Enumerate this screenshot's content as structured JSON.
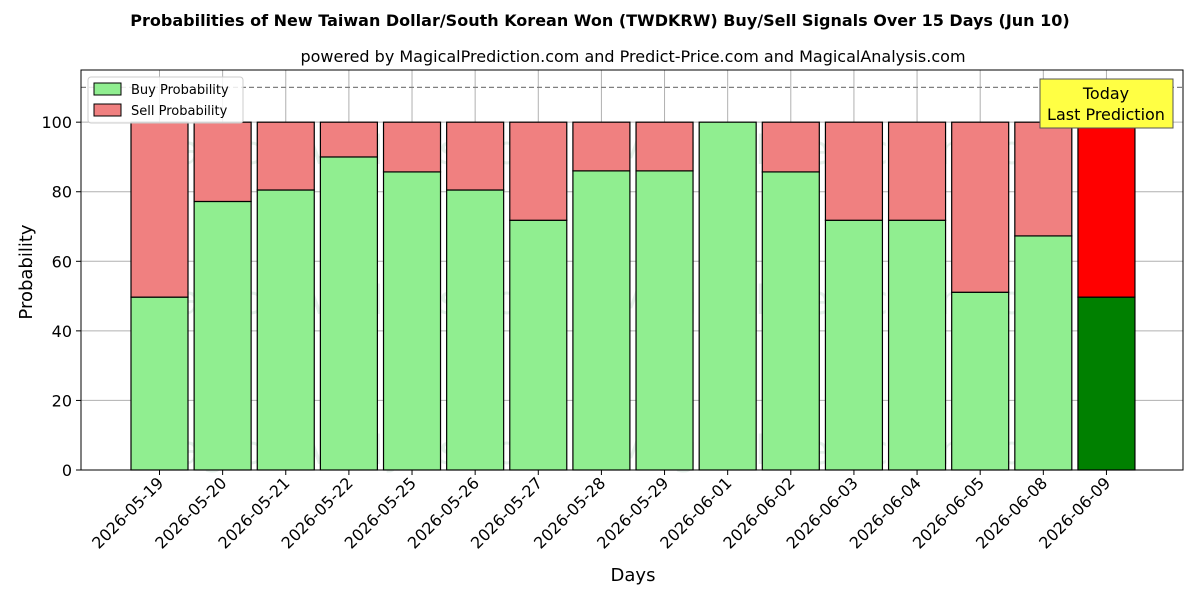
{
  "chart_data": {
    "type": "bar",
    "stacked": true,
    "title": "Probabilities of New Taiwan Dollar/South Korean Won (TWDKRW) Buy/Sell Signals Over 15 Days (Jun 10)",
    "subtitle": "powered by MagicalPrediction.com and Predict-Price.com and MagicalAnalysis.com",
    "xlabel": "Days",
    "ylabel": "Probability",
    "ylim": [
      0,
      115
    ],
    "yticks": [
      0,
      20,
      40,
      60,
      80,
      100
    ],
    "grid": true,
    "legend_placement": "top-left",
    "reference_line": 110,
    "categories": [
      "2026-05-19",
      "2026-05-20",
      "2026-05-21",
      "2026-05-22",
      "2026-05-25",
      "2026-05-26",
      "2026-05-27",
      "2026-05-28",
      "2026-05-29",
      "2026-06-01",
      "2026-06-02",
      "2026-06-03",
      "2026-06-04",
      "2026-06-05",
      "2026-06-08",
      "2026-06-09"
    ],
    "series": [
      {
        "name": "Buy Probability",
        "values": [
          49.7,
          77.2,
          80.5,
          90.0,
          85.7,
          80.5,
          71.8,
          86.0,
          86.0,
          100.0,
          85.7,
          71.8,
          71.8,
          51.1,
          67.3,
          49.7
        ]
      },
      {
        "name": "Sell Probability",
        "values": [
          50.3,
          22.8,
          19.5,
          10.0,
          14.3,
          19.5,
          28.2,
          14.0,
          14.0,
          0.0,
          14.3,
          28.2,
          28.2,
          48.9,
          32.7,
          50.3
        ]
      }
    ],
    "colors": {
      "buy": "#90ee90",
      "sell": "#f08080",
      "buy_today": "#008000",
      "sell_today": "#ff0000",
      "annotation_bg": "#ffff44"
    },
    "annotation": {
      "lines": [
        "Today",
        "Last Prediction"
      ],
      "category": "2026-06-09"
    },
    "watermarks": [
      "MagicalAnalysis.com",
      "MagicalPrediction.com"
    ]
  }
}
